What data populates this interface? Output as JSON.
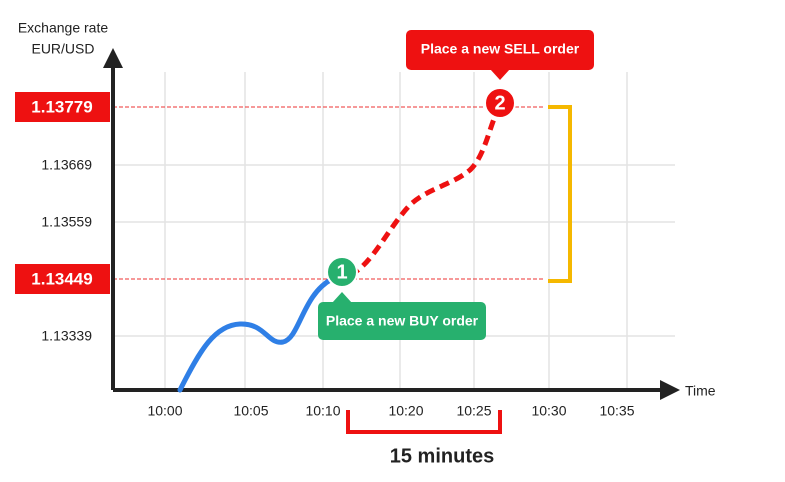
{
  "y_axis": {
    "label_line1": "Exchange rate",
    "label_line2": "EUR/USD",
    "ticks": [
      "1.13779",
      "1.13669",
      "1.13559",
      "1.13449",
      "1.13339"
    ]
  },
  "x_axis": {
    "label": "Time",
    "ticks": [
      "10:00",
      "10:05",
      "10:10",
      "10:20",
      "10:25",
      "10:30",
      "10:35"
    ]
  },
  "callouts": [
    {
      "number": "2",
      "text": "Place a new SELL order"
    },
    {
      "number": "1",
      "text": "Place a new BUY order"
    }
  ],
  "duration": "15 minutes"
}
